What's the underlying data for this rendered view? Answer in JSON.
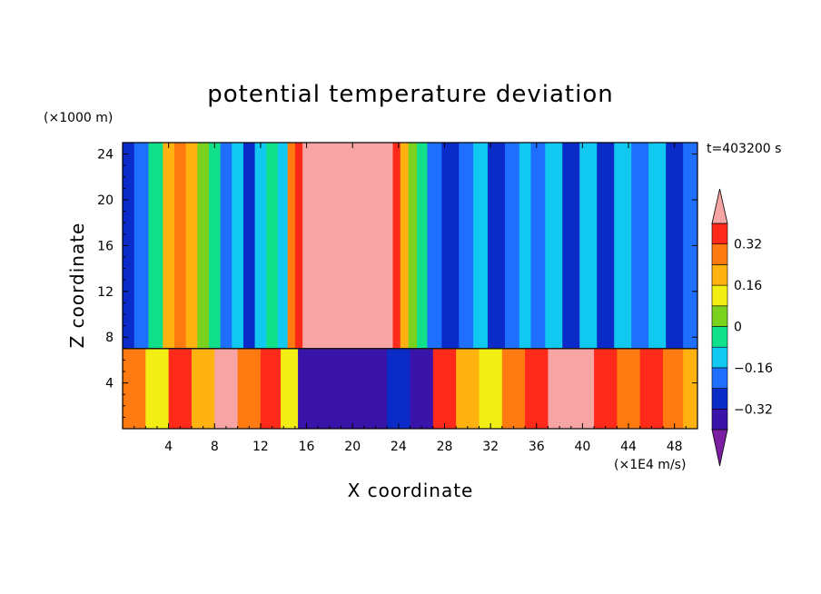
{
  "chart_data": {
    "type": "heatmap",
    "title": "potential temperature deviation",
    "xlabel": "X coordinate",
    "ylabel": "Z coordinate",
    "x_unit": "(×1E4 m/s)",
    "y_unit": "(×1000 m)",
    "time_label": "t=403200 s",
    "xlim": [
      0,
      50
    ],
    "ylim": [
      0,
      25
    ],
    "x_ticks": [
      4,
      8,
      12,
      16,
      20,
      24,
      28,
      32,
      36,
      40,
      44,
      48
    ],
    "y_ticks": [
      4,
      8,
      12,
      16,
      20,
      24
    ],
    "colorbar": {
      "levels": [
        -0.4,
        -0.32,
        -0.24,
        -0.16,
        -0.08,
        0,
        0.08,
        0.16,
        0.24,
        0.32,
        0.4
      ],
      "tick_values": [
        "0.32",
        "0.16",
        "0",
        "−0.16",
        "−0.32"
      ],
      "colors": [
        "#7b1fa2",
        "#3a14a8",
        "#0a2bc8",
        "#1e6fff",
        "#10c8f0",
        "#10e08a",
        "#7ad21e",
        "#f2ee14",
        "#ffb210",
        "#ff7a10",
        "#ff2a1a",
        "#f7a4a4"
      ]
    },
    "inversion_height": 7,
    "upper_layer_columns": [
      {
        "x": 0.5,
        "value": -0.32
      },
      {
        "x": 1.5,
        "value": -0.24
      },
      {
        "x": 3.0,
        "value": -0.08
      },
      {
        "x": 4.0,
        "value": 0.16
      },
      {
        "x": 5.0,
        "value": 0.24
      },
      {
        "x": 6.0,
        "value": 0.16
      },
      {
        "x": 7.0,
        "value": 0.0
      },
      {
        "x": 8.0,
        "value": -0.08
      },
      {
        "x": 9.0,
        "value": -0.24
      },
      {
        "x": 10.0,
        "value": -0.16
      },
      {
        "x": 11.0,
        "value": -0.32
      },
      {
        "x": 12.0,
        "value": -0.16
      },
      {
        "x": 13.0,
        "value": -0.08
      },
      {
        "x": 14.0,
        "value": -0.16
      },
      {
        "x": 14.7,
        "value": 0.24
      },
      {
        "x": 15.3,
        "value": 0.32
      },
      {
        "x": 16.0,
        "value": 0.45
      },
      {
        "x": 18.0,
        "value": 0.45
      },
      {
        "x": 20.0,
        "value": 0.45
      },
      {
        "x": 22.0,
        "value": 0.45
      },
      {
        "x": 23.2,
        "value": 0.45
      },
      {
        "x": 23.8,
        "value": 0.32
      },
      {
        "x": 24.5,
        "value": 0.16
      },
      {
        "x": 25.2,
        "value": 0.0
      },
      {
        "x": 26.0,
        "value": -0.08
      },
      {
        "x": 27.0,
        "value": -0.24
      },
      {
        "x": 28.5,
        "value": -0.32
      },
      {
        "x": 30.0,
        "value": -0.24
      },
      {
        "x": 31.0,
        "value": -0.16
      },
      {
        "x": 32.5,
        "value": -0.32
      },
      {
        "x": 34.0,
        "value": -0.24
      },
      {
        "x": 35.0,
        "value": -0.16
      },
      {
        "x": 36.0,
        "value": -0.24
      },
      {
        "x": 37.5,
        "value": -0.16
      },
      {
        "x": 39.0,
        "value": -0.32
      },
      {
        "x": 40.5,
        "value": -0.16
      },
      {
        "x": 42.0,
        "value": -0.32
      },
      {
        "x": 43.5,
        "value": -0.16
      },
      {
        "x": 45.0,
        "value": -0.24
      },
      {
        "x": 46.5,
        "value": -0.16
      },
      {
        "x": 48.0,
        "value": -0.32
      },
      {
        "x": 49.5,
        "value": -0.24
      }
    ],
    "lower_layer_columns": [
      {
        "x": 1.0,
        "value": 0.24
      },
      {
        "x": 3.0,
        "value": 0.08
      },
      {
        "x": 5.0,
        "value": 0.32
      },
      {
        "x": 7.0,
        "value": 0.16
      },
      {
        "x": 9.0,
        "value": 0.4
      },
      {
        "x": 11.0,
        "value": 0.24
      },
      {
        "x": 13.0,
        "value": 0.32
      },
      {
        "x": 14.5,
        "value": 0.08
      },
      {
        "x": 16.0,
        "value": -0.4
      },
      {
        "x": 18.0,
        "value": -0.4
      },
      {
        "x": 20.0,
        "value": -0.4
      },
      {
        "x": 22.0,
        "value": -0.4
      },
      {
        "x": 24.0,
        "value": -0.32
      },
      {
        "x": 26.0,
        "value": -0.4
      },
      {
        "x": 28.0,
        "value": 0.32
      },
      {
        "x": 30.0,
        "value": 0.16
      },
      {
        "x": 32.0,
        "value": 0.08
      },
      {
        "x": 34.0,
        "value": 0.24
      },
      {
        "x": 36.0,
        "value": 0.32
      },
      {
        "x": 38.0,
        "value": 0.4
      },
      {
        "x": 40.0,
        "value": 0.4
      },
      {
        "x": 42.0,
        "value": 0.32
      },
      {
        "x": 44.0,
        "value": 0.24
      },
      {
        "x": 46.0,
        "value": 0.32
      },
      {
        "x": 48.0,
        "value": 0.24
      },
      {
        "x": 49.5,
        "value": 0.16
      }
    ]
  }
}
